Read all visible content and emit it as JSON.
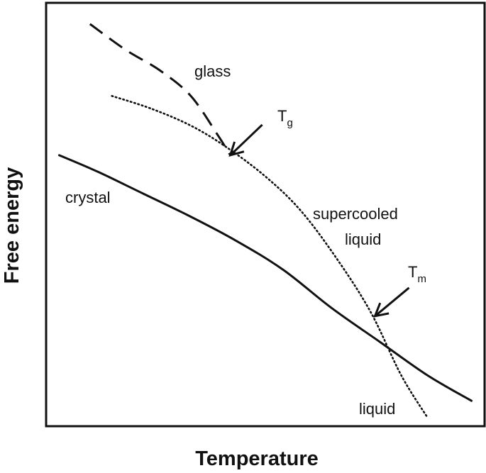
{
  "chart_data": {
    "type": "line",
    "title": "",
    "xlabel": "Temperature",
    "ylabel": "Free energy",
    "xlim": [
      0,
      1
    ],
    "ylim": [
      0,
      1
    ],
    "axis_ticks": "none",
    "grid": false,
    "legend": "none",
    "series": [
      {
        "name": "crystal",
        "style": "solid",
        "x": [
          0.03,
          0.12,
          0.22,
          0.32,
          0.43,
          0.54,
          0.65,
          0.76,
          0.87,
          0.97
        ],
        "y": [
          0.64,
          0.6,
          0.55,
          0.5,
          0.44,
          0.37,
          0.28,
          0.2,
          0.12,
          0.06
        ]
      },
      {
        "name": "glass",
        "style": "dashed",
        "x": [
          0.1,
          0.18,
          0.26,
          0.33,
          0.39,
          0.42
        ],
        "y": [
          0.95,
          0.89,
          0.84,
          0.78,
          0.69,
          0.64
        ]
      },
      {
        "name": "supercooled liquid / liquid",
        "style": "dotted",
        "x": [
          0.15,
          0.24,
          0.33,
          0.41,
          0.5,
          0.58,
          0.66,
          0.74,
          0.81,
          0.87
        ],
        "y": [
          0.78,
          0.75,
          0.71,
          0.66,
          0.59,
          0.51,
          0.4,
          0.27,
          0.12,
          0.02
        ]
      }
    ],
    "annotations": [
      {
        "base": "T",
        "sub": "g",
        "x": 0.42,
        "y": 0.64
      },
      {
        "base": "T",
        "sub": "m",
        "x": 0.75,
        "y": 0.26
      }
    ],
    "labels": {
      "glass": "glass",
      "crystal": "crystal",
      "supercooled_1": "supercooled",
      "supercooled_2": "liquid",
      "liquid": "liquid"
    }
  },
  "colors": {
    "line": "#111111",
    "frame": "#111111",
    "background": "#ffffff"
  }
}
